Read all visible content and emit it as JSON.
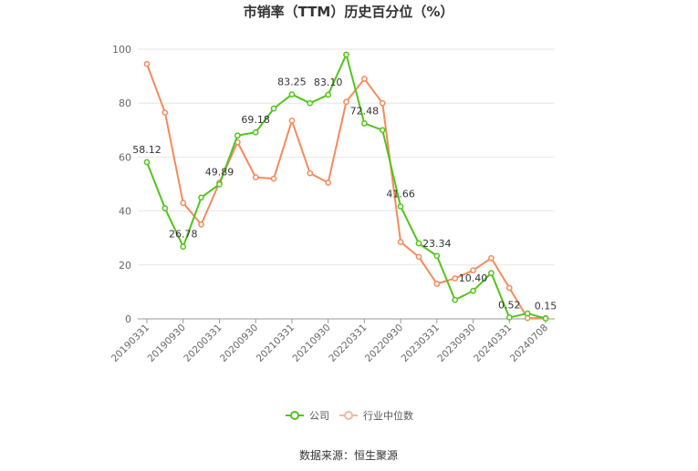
{
  "title": "市销率（TTM）历史百分位（%）",
  "source": "数据来源：恒生聚源",
  "colors": {
    "company": "#52c41a",
    "industry": "#f58a5c",
    "grid": "#e6e6e6",
    "axis": "#999999"
  },
  "chart_data": {
    "type": "line",
    "ylim": [
      0,
      100
    ],
    "yticks": [
      0,
      20,
      40,
      60,
      80,
      100
    ],
    "x_tick_labels": [
      "20190331",
      "20190930",
      "20200331",
      "20200930",
      "20210331",
      "20210930",
      "20220331",
      "20220930",
      "20230331",
      "20230930",
      "20240331",
      "20240708"
    ],
    "legend_position": "bottom",
    "grid": true,
    "series": [
      {
        "name": "公司",
        "color": "#52c41a",
        "values": [
          58.12,
          41,
          26.78,
          45,
          49.89,
          68,
          69.18,
          78,
          83.25,
          80,
          83.1,
          98,
          72.48,
          70,
          41.66,
          28,
          23.34,
          7,
          10.4,
          17,
          0.52,
          2,
          0.15
        ]
      },
      {
        "name": "行业中位数",
        "color": "#f58a5c",
        "values": [
          94.5,
          76.5,
          43,
          35,
          50.5,
          65.5,
          52.5,
          52,
          73.5,
          54,
          50.5,
          80.5,
          89,
          80,
          28.5,
          23,
          13,
          15,
          18,
          22.5,
          11.5,
          0.3,
          0.3
        ]
      }
    ],
    "data_labels": [
      {
        "series": 0,
        "index": 0,
        "text": "58.12"
      },
      {
        "series": 0,
        "index": 2,
        "text": "26.78"
      },
      {
        "series": 0,
        "index": 4,
        "text": "49.89"
      },
      {
        "series": 0,
        "index": 6,
        "text": "69.18"
      },
      {
        "series": 0,
        "index": 8,
        "text": "83.25"
      },
      {
        "series": 0,
        "index": 10,
        "text": "83.10"
      },
      {
        "series": 0,
        "index": 12,
        "text": "72.48"
      },
      {
        "series": 0,
        "index": 14,
        "text": "41.66"
      },
      {
        "series": 0,
        "index": 16,
        "text": "23.34"
      },
      {
        "series": 0,
        "index": 18,
        "text": "10.40"
      },
      {
        "series": 0,
        "index": 20,
        "text": "0.52"
      },
      {
        "series": 0,
        "index": 22,
        "text": "0.15"
      }
    ]
  }
}
